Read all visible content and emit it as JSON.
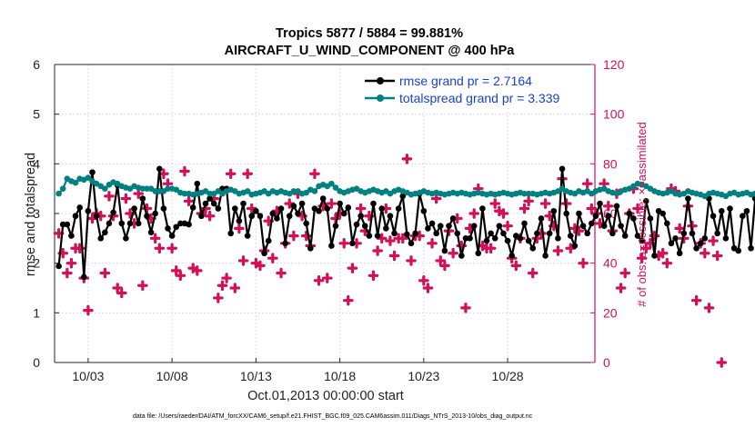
{
  "chart_data": {
    "type": "line",
    "title": "Tropics 5877 / 5884 = 99.881%",
    "subtitle": "AIRCRAFT_U_WIND_COMPONENT @ 400 hPa",
    "xlabel": "Oct.01,2013 00:00:00 start",
    "ylabel": "rmse and totalspread",
    "y2label": "# of obs: o=possible; ×=assimilated",
    "footnote": "data file: /Users/raeder/DAI/ATM_forcXX/CAM6_setup/f.e21.FHIST_BGC.f09_025.CAM6assim.011/Diags_NTrS_2013-10/obs_diag_output.nc",
    "x_tick_labels": [
      "10/03",
      "10/08",
      "10/13",
      "10/18",
      "10/23",
      "10/28"
    ],
    "x_tick_days": [
      3,
      8,
      13,
      18,
      23,
      28
    ],
    "xlim_days": [
      1,
      33.2
    ],
    "ylim": [
      0,
      6
    ],
    "y_ticks": [
      0,
      1,
      2,
      3,
      4,
      5,
      6
    ],
    "y2lim": [
      0,
      120
    ],
    "y2_ticks": [
      0,
      20,
      40,
      60,
      80,
      100,
      120
    ],
    "grid": true,
    "legend": {
      "position": "top-right",
      "entries": [
        "rmse grand pr = 2.7164",
        "totalspread grand pr = 3.339"
      ]
    },
    "time_step_hours": 6,
    "first_time_day": 1.25,
    "series": [
      {
        "name": "rmse",
        "color": "#000000",
        "axis": "left",
        "values": [
          1.94,
          2.78,
          2.78,
          2.55,
          2.95,
          3.12,
          1.72,
          3.05,
          3.83,
          2.95,
          2.5,
          2.62,
          2.8,
          3.02,
          3.57,
          2.8,
          2.5,
          2.8,
          3.1,
          2.8,
          3.3,
          2.95,
          2.62,
          3.0,
          3.9,
          3.1,
          2.7,
          2.55,
          2.73,
          2.8,
          2.8,
          2.78,
          3.12,
          3.6,
          2.95,
          3.2,
          3.3,
          3.2,
          3.1,
          3.5,
          3.5,
          2.6,
          3.1,
          2.85,
          3.2,
          2.55,
          2.95,
          3.05,
          2.95,
          2.2,
          2.45,
          3.0,
          2.9,
          3.1,
          2.4,
          2.95,
          3.15,
          3.0,
          3.2,
          2.8,
          2.3,
          3.1,
          3.05,
          3.3,
          3.1,
          2.35,
          2.75,
          3.2,
          3.0,
          3.12,
          2.4,
          2.78,
          2.95,
          2.75,
          2.55,
          3.2,
          2.55,
          3.1,
          2.7,
          2.95,
          2.6,
          3.1,
          3.35,
          2.58,
          2.4,
          2.6,
          3.4,
          3.05,
          2.7,
          2.8,
          2.6,
          2.75,
          2.25,
          2.75,
          2.9,
          2.6,
          2.15,
          2.5,
          2.5,
          2.75,
          2.2,
          3.1,
          2.45,
          2.6,
          2.5,
          2.75,
          2.6,
          2.45,
          2.15,
          2.55,
          2.5,
          2.8,
          2.45,
          2.3,
          2.6,
          2.9,
          2.15,
          2.6,
          3.05,
          2.5,
          3.9,
          3.0,
          2.55,
          2.35,
          3.0,
          2.75,
          2.6,
          2.8,
          2.95,
          3.2,
          2.75,
          2.95,
          2.6,
          3.15,
          2.75,
          2.55,
          3.0,
          2.9,
          2.55,
          2.45,
          3.25,
          2.9,
          2.15,
          3.05,
          3.0,
          2.8,
          2.4,
          2.5,
          2.2,
          2.6,
          3.3,
          2.6,
          2.3,
          2.4,
          2.5,
          3.3,
          2.95,
          2.6,
          3.05,
          2.5,
          3.1,
          2.3,
          2.25,
          2.95,
          3.05,
          2.3,
          3.3,
          2.5,
          3.0,
          3.0
        ]
      },
      {
        "name": "totalspread",
        "color": "#008080",
        "axis": "left",
        "values": [
          3.4,
          3.5,
          3.7,
          3.65,
          3.62,
          3.7,
          3.68,
          3.72,
          3.65,
          3.6,
          3.55,
          3.5,
          3.58,
          3.63,
          3.6,
          3.55,
          3.52,
          3.5,
          3.55,
          3.52,
          3.5,
          3.5,
          3.5,
          3.45,
          3.45,
          3.45,
          3.5,
          3.5,
          3.48,
          3.42,
          3.4,
          3.4,
          3.38,
          3.4,
          3.42,
          3.45,
          3.4,
          3.4,
          3.45,
          3.4,
          3.45,
          3.48,
          3.45,
          3.4,
          3.42,
          3.45,
          3.38,
          3.4,
          3.42,
          3.45,
          3.4,
          3.45,
          3.42,
          3.45,
          3.42,
          3.4,
          3.45,
          3.45,
          3.4,
          3.42,
          3.48,
          3.45,
          3.55,
          3.58,
          3.55,
          3.6,
          3.52,
          3.45,
          3.42,
          3.45,
          3.48,
          3.5,
          3.45,
          3.42,
          3.45,
          3.48,
          3.45,
          3.42,
          3.45,
          3.4,
          3.45,
          3.48,
          3.45,
          3.42,
          3.38,
          3.4,
          3.42,
          3.45,
          3.42,
          3.4,
          3.42,
          3.4,
          3.38,
          3.4,
          3.42,
          3.4,
          3.42,
          3.4,
          3.38,
          3.4,
          3.42,
          3.4,
          3.38,
          3.4,
          3.38,
          3.4,
          3.42,
          3.4,
          3.38,
          3.4,
          3.42,
          3.4,
          3.4,
          3.4,
          3.38,
          3.4,
          3.42,
          3.4,
          3.42,
          3.45,
          3.5,
          3.45,
          3.42,
          3.4,
          3.45,
          3.42,
          3.45,
          3.4,
          3.45,
          3.48,
          3.5,
          3.45,
          3.42,
          3.4,
          3.45,
          3.48,
          3.5,
          3.55,
          3.6,
          3.58,
          3.55,
          3.5,
          3.45,
          3.42,
          3.4,
          3.42,
          3.45,
          3.4,
          3.38,
          3.4,
          3.45,
          3.42,
          3.4,
          3.38,
          3.35,
          3.4,
          3.42,
          3.4,
          3.38,
          3.35,
          3.4,
          3.42,
          3.38,
          3.4,
          3.42,
          3.38,
          3.4,
          3.35,
          3.4,
          3.45
        ]
      },
      {
        "name": "obs possible",
        "color": "#d1105a",
        "axis": "right",
        "values": [
          52,
          44,
          36,
          40,
          46,
          46,
          34,
          21,
          58,
          60,
          59,
          36,
          67,
          59,
          30,
          28,
          66,
          60,
          56,
          68,
          31,
          62,
          58,
          50,
          46,
          76,
          72,
          46,
          37,
          35,
          77,
          65,
          38,
          37,
          60,
          62,
          59,
          66,
          26,
          31,
          34,
          76,
          30,
          54,
          41,
          76,
          62,
          40,
          39,
          45,
          57,
          42,
          61,
          36,
          48,
          64,
          51,
          68,
          59,
          51,
          47,
          76,
          33,
          63,
          34,
          64,
          58,
          60,
          48,
          25,
          38,
          48,
          62,
          53,
          59,
          35,
          45,
          50,
          62,
          49,
          43,
          50,
          50,
          82,
          41,
          51,
          51,
          33,
          30,
          48,
          66,
          41,
          39,
          53,
          44,
          58,
          47,
          22,
          54,
          60,
          70,
          47,
          46,
          46,
          64,
          61,
          60,
          55,
          42,
          39,
          50,
          62,
          65,
          36,
          50,
          52,
          64,
          59,
          55,
          45,
          74,
          64,
          46,
          54,
          53,
          40,
          72,
          62,
          60,
          56,
          72,
          63,
          53,
          68,
          30,
          36,
          60,
          70,
          62,
          42,
          46,
          48,
          51,
          43,
          44,
          40,
          70,
          69,
          54,
          50,
          63,
          55,
          25,
          48,
          44,
          22,
          49,
          43,
          0
        ]
      }
    ]
  }
}
